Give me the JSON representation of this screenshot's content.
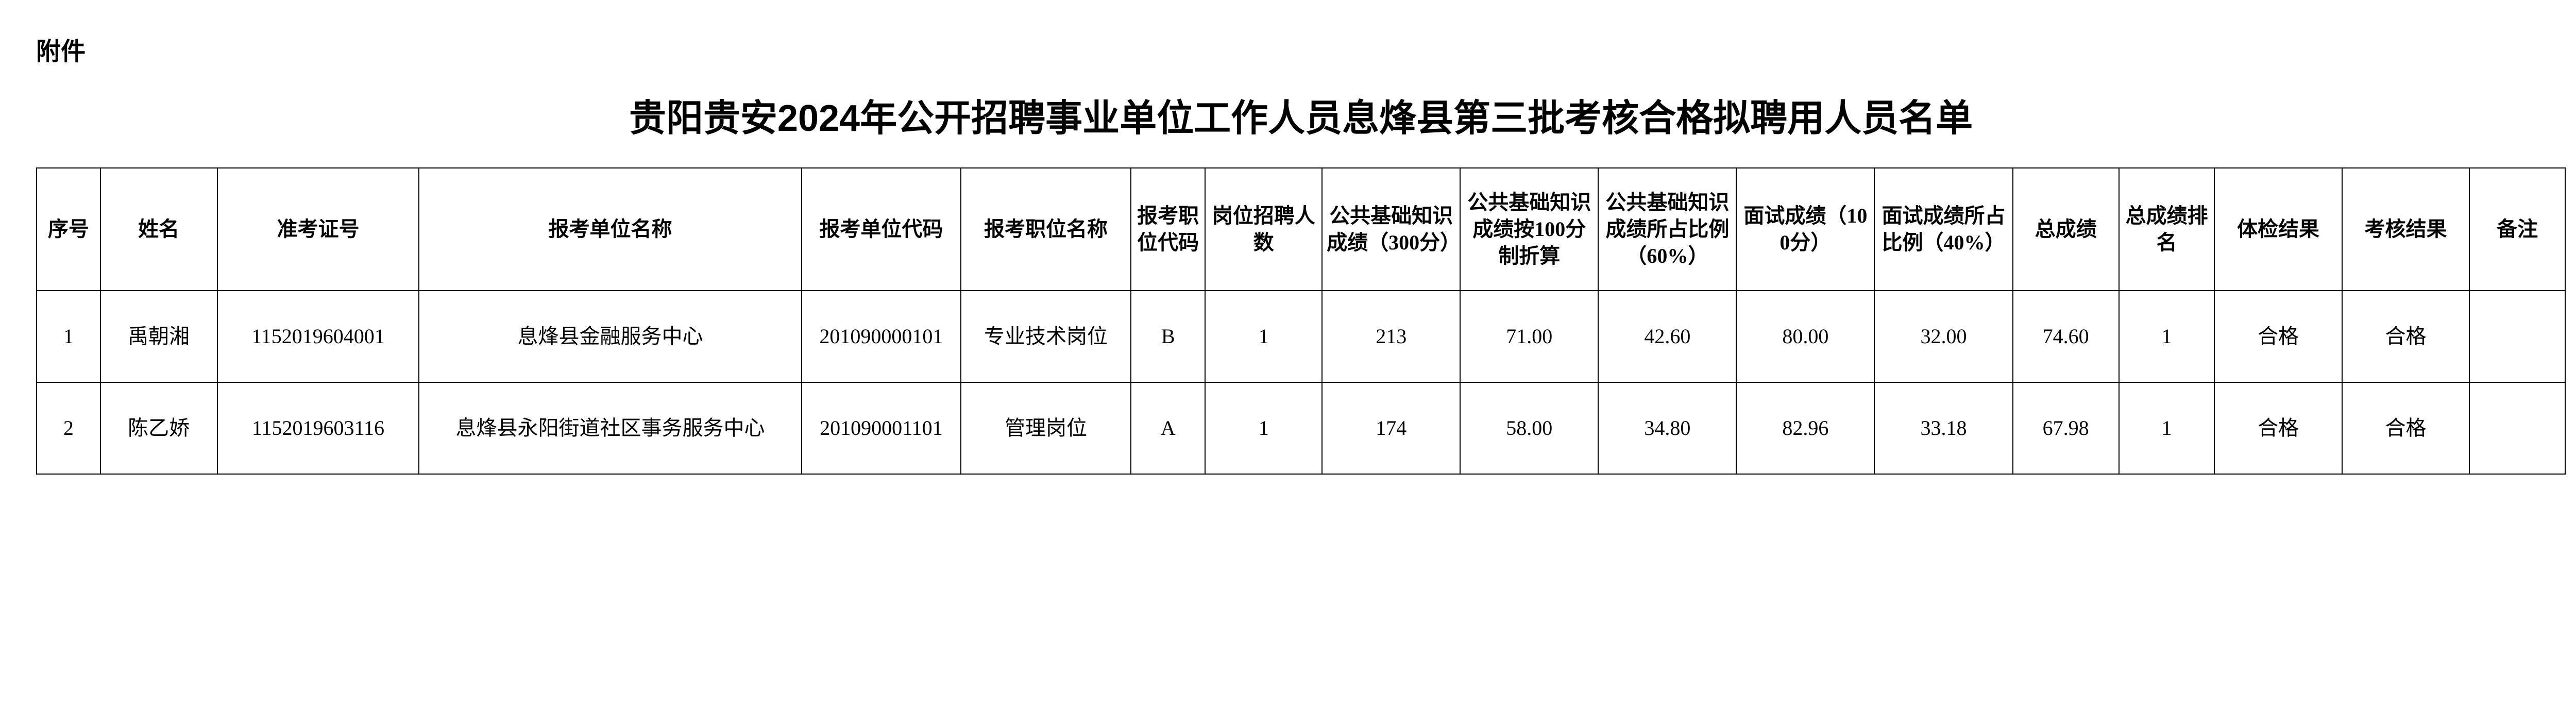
{
  "attachment_label": "附件",
  "title": "贵阳贵安2024年公开招聘事业单位工作人员息烽县第三批考核合格拟聘用人员名单",
  "columns": [
    "序号",
    "姓名",
    "准考证号",
    "报考单位名称",
    "报考单位代码",
    "报考职位名称",
    "报考职位代码",
    "岗位招聘人数",
    "公共基础知识成绩（300分）",
    "公共基础知识成绩按100分制折算",
    "公共基础知识成绩所占比例（60%）",
    "面试成绩（100分）",
    "面试成绩所占比例（40%）",
    "总成绩",
    "总成绩排名",
    "体检结果",
    "考核结果",
    "备注"
  ],
  "rows": [
    {
      "seq": "1",
      "name": "禹朝湘",
      "exam_no": "1152019604001",
      "unit": "息烽县金融服务中心",
      "unit_code": "201090000101",
      "position": "专业技术岗位",
      "position_code": "B",
      "recruit_count": "1",
      "pub_score_300": "213",
      "pub_score_100": "71.00",
      "pub_score_60pct": "42.60",
      "interview_100": "80.00",
      "interview_40pct": "32.00",
      "total": "74.60",
      "rank": "1",
      "physical": "合格",
      "assess": "合格",
      "remark": ""
    },
    {
      "seq": "2",
      "name": "陈乙娇",
      "exam_no": "1152019603116",
      "unit": "息烽县永阳街道社区事务服务中心",
      "unit_code": "201090001101",
      "position": "管理岗位",
      "position_code": "A",
      "recruit_count": "1",
      "pub_score_300": "174",
      "pub_score_100": "58.00",
      "pub_score_60pct": "34.80",
      "interview_100": "82.96",
      "interview_40pct": "33.18",
      "total": "67.98",
      "rank": "1",
      "physical": "合格",
      "assess": "合格",
      "remark": ""
    }
  ]
}
